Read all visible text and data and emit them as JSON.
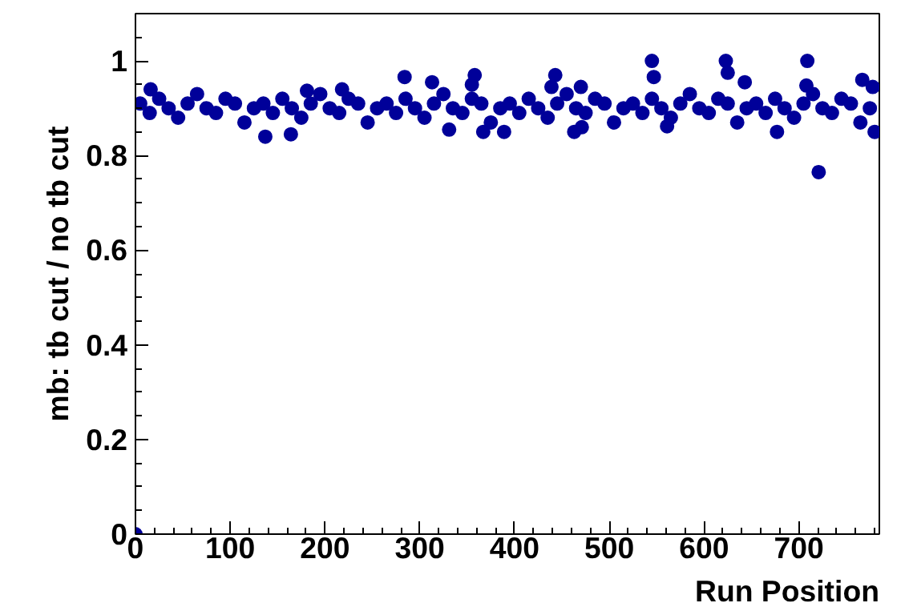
{
  "chart_data": {
    "type": "scatter",
    "xlabel": "Run Position",
    "ylabel": "mb: tb cut / no tb cut",
    "xlim": [
      0,
      785
    ],
    "ylim": [
      0,
      1.1
    ],
    "xticks": [
      0,
      100,
      200,
      300,
      400,
      500,
      600,
      700
    ],
    "yticks": [
      0,
      0.2,
      0.4,
      0.6,
      0.8,
      1
    ],
    "grid": false,
    "marker": "circle",
    "series": [
      {
        "color": "#000099",
        "x": [
          0,
          5,
          15,
          25,
          35,
          45,
          55,
          65,
          75,
          85,
          95,
          105,
          115,
          125,
          135,
          145,
          155,
          165,
          175,
          185,
          195,
          205,
          215,
          225,
          235,
          245,
          255,
          265,
          275,
          285,
          295,
          305,
          315,
          325,
          335,
          345,
          355,
          365,
          375,
          385,
          395,
          405,
          415,
          425,
          435,
          445,
          455,
          465,
          475,
          485,
          495,
          505,
          515,
          525,
          535,
          545,
          555,
          565,
          575,
          585,
          595,
          605,
          615,
          625,
          635,
          645,
          655,
          665,
          675,
          685,
          695,
          705,
          715,
          725,
          735,
          745,
          755,
          765,
          775,
          16,
          284,
          358,
          355,
          313,
          137,
          164,
          367,
          389,
          331,
          218,
          181,
          545,
          623,
          709,
          547,
          625,
          443,
          439,
          643,
          767,
          721,
          463,
          471,
          677,
          780,
          561,
          708,
          778,
          470
        ],
        "values": [
          0,
          0.91,
          0.89,
          0.92,
          0.9,
          0.88,
          0.91,
          0.93,
          0.9,
          0.89,
          0.92,
          0.91,
          0.87,
          0.9,
          0.91,
          0.89,
          0.92,
          0.9,
          0.88,
          0.91,
          0.93,
          0.9,
          0.89,
          0.92,
          0.91,
          0.87,
          0.9,
          0.91,
          0.89,
          0.92,
          0.9,
          0.88,
          0.91,
          0.93,
          0.9,
          0.89,
          0.92,
          0.91,
          0.87,
          0.9,
          0.91,
          0.89,
          0.92,
          0.9,
          0.88,
          0.91,
          0.93,
          0.9,
          0.89,
          0.92,
          0.91,
          0.87,
          0.9,
          0.91,
          0.89,
          0.92,
          0.9,
          0.88,
          0.91,
          0.93,
          0.9,
          0.89,
          0.92,
          0.91,
          0.87,
          0.9,
          0.91,
          0.89,
          0.92,
          0.9,
          0.88,
          0.91,
          0.93,
          0.9,
          0.89,
          0.92,
          0.91,
          0.87,
          0.9,
          0.94,
          0.966,
          0.97,
          0.95,
          0.955,
          0.84,
          0.845,
          0.85,
          0.85,
          0.855,
          0.94,
          0.937,
          1.0,
          1.0,
          1.0,
          0.966,
          0.975,
          0.97,
          0.945,
          0.955,
          0.96,
          0.765,
          0.85,
          0.86,
          0.85,
          0.85,
          0.862,
          0.948,
          0.945,
          0.945
        ]
      }
    ]
  }
}
